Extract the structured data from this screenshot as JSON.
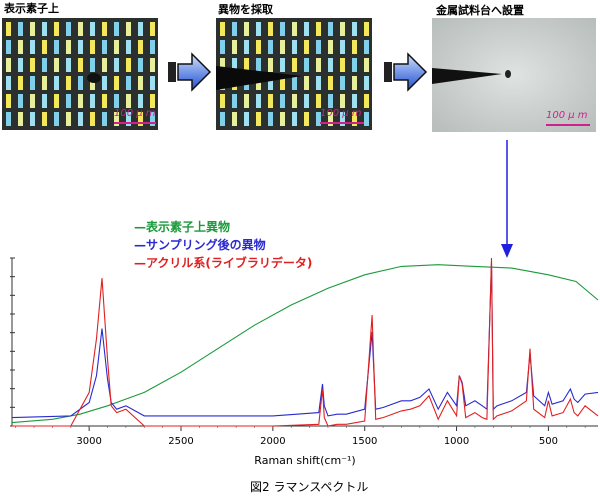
{
  "panels": [
    {
      "label": "表示素子上",
      "scale": "100 μ m"
    },
    {
      "label": "異物を採取",
      "scale": "100 μ m"
    },
    {
      "label": "金属試料台へ設置",
      "scale": "100 μ m"
    }
  ],
  "legend": [
    {
      "text": "—表示素子上異物",
      "color": "#1a9a3a"
    },
    {
      "text": "—サンプリング後の異物",
      "color": "#2a2ad0"
    },
    {
      "text": "—アクリル系(ライブラリデータ)",
      "color": "#e02020"
    }
  ],
  "caption": "図2  ラマンスペクトル",
  "chart_data": {
    "type": "line",
    "xlabel": "Raman shift(cm⁻¹)",
    "x_ticks": [
      "3000",
      "2500",
      "2000",
      "1500",
      "1000",
      "500"
    ],
    "xlim": [
      3420,
      230
    ],
    "x_reversed": true,
    "series": [
      {
        "name": "表示素子上異物",
        "color": "#1a9a3a",
        "x": [
          3420,
          3200,
          3050,
          2900,
          2700,
          2500,
          2300,
          2100,
          1900,
          1700,
          1500,
          1300,
          1100,
          900,
          700,
          500,
          350,
          230
        ],
        "y": [
          0.02,
          0.04,
          0.07,
          0.12,
          0.2,
          0.32,
          0.46,
          0.6,
          0.72,
          0.82,
          0.9,
          0.95,
          0.96,
          0.95,
          0.94,
          0.9,
          0.86,
          0.75
        ]
      },
      {
        "name": "サンプリング後の異物",
        "color": "#2a2ad0",
        "x": [
          3420,
          3100,
          3000,
          2960,
          2930,
          2900,
          2880,
          2850,
          2800,
          2700,
          2400,
          2000,
          1750,
          1730,
          1720,
          1700,
          1650,
          1600,
          1500,
          1460,
          1450,
          1440,
          1400,
          1300,
          1250,
          1200,
          1150,
          1100,
          1050,
          1000,
          985,
          970,
          950,
          900,
          860,
          835,
          810,
          800,
          780,
          700,
          620,
          600,
          580,
          520,
          500,
          480,
          420,
          380,
          360,
          340,
          300,
          230
        ],
        "y": [
          0.05,
          0.06,
          0.14,
          0.3,
          0.58,
          0.28,
          0.14,
          0.1,
          0.12,
          0.06,
          0.06,
          0.06,
          0.08,
          0.25,
          0.12,
          0.06,
          0.07,
          0.07,
          0.1,
          0.56,
          0.32,
          0.1,
          0.11,
          0.15,
          0.15,
          0.17,
          0.22,
          0.1,
          0.2,
          0.12,
          0.3,
          0.26,
          0.12,
          0.15,
          0.12,
          0.1,
          0.97,
          0.1,
          0.12,
          0.15,
          0.2,
          0.43,
          0.18,
          0.12,
          0.2,
          0.13,
          0.15,
          0.22,
          0.16,
          0.14,
          0.19,
          0.2
        ]
      },
      {
        "name": "アクリル系(ライブラリデータ)",
        "color": "#e02020",
        "x": [
          3420,
          3100,
          3000,
          2960,
          2930,
          2900,
          2880,
          2850,
          2800,
          2700,
          2400,
          2000,
          1750,
          1730,
          1720,
          1700,
          1650,
          1600,
          1500,
          1460,
          1450,
          1440,
          1400,
          1300,
          1250,
          1200,
          1150,
          1100,
          1050,
          1000,
          985,
          970,
          950,
          900,
          860,
          835,
          810,
          800,
          780,
          700,
          620,
          600,
          580,
          520,
          500,
          480,
          420,
          380,
          360,
          340,
          300,
          230
        ],
        "y": [
          0.0,
          0.0,
          0.2,
          0.52,
          0.88,
          0.4,
          0.12,
          0.08,
          0.1,
          0.0,
          0.0,
          0.0,
          0.01,
          0.22,
          0.05,
          0.0,
          0.01,
          0.01,
          0.03,
          0.66,
          0.35,
          0.04,
          0.05,
          0.09,
          0.1,
          0.12,
          0.18,
          0.04,
          0.15,
          0.06,
          0.3,
          0.25,
          0.05,
          0.08,
          0.05,
          0.04,
          1.0,
          0.04,
          0.06,
          0.09,
          0.15,
          0.46,
          0.1,
          0.05,
          0.15,
          0.06,
          0.08,
          0.16,
          0.08,
          0.06,
          0.12,
          0.06
        ]
      }
    ]
  }
}
